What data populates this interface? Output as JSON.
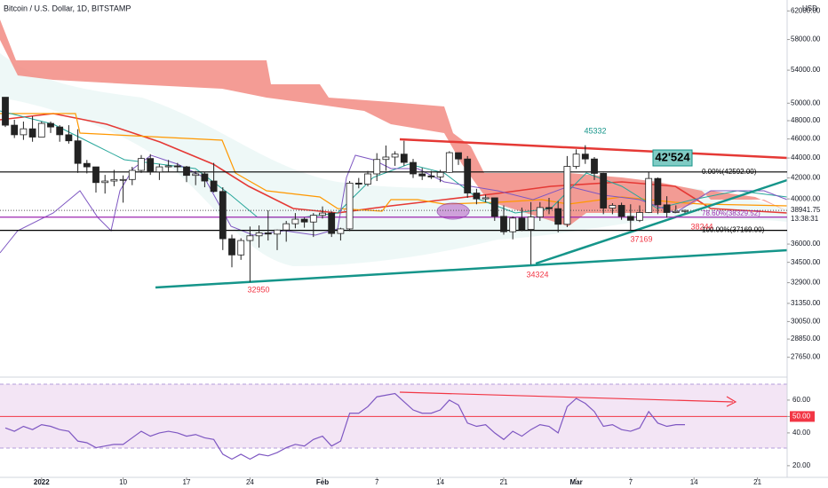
{
  "chart_data": [
    {
      "type": "candlestick",
      "title": "Bitcoin / U.S. Dollar, 1D, BITSTAMP",
      "currency": "USD",
      "open": [
        50700,
        47500,
        46450,
        47100,
        46200,
        47700,
        47300,
        46450,
        45800,
        43450,
        43100,
        41550,
        41700,
        41850,
        41850,
        42750,
        43950,
        42600,
        43100,
        43200,
        43100,
        42250,
        42400,
        41700,
        40700,
        36450,
        35100,
        36300,
        36700,
        36950,
        36850,
        37200,
        37750,
        38150,
        37900,
        38500,
        38700,
        36900,
        37300,
        41500,
        41400,
        42400,
        43850,
        44100,
        44400,
        43550,
        42400,
        42200,
        42100,
        42550,
        44550,
        43900,
        40550,
        40000,
        40100,
        38400,
        37050,
        38250,
        37250,
        38350,
        39200,
        39100,
        37700,
        43150,
        44400,
        43900,
        42450,
        39150,
        39400,
        38400,
        38050,
        38750,
        41950,
        39450,
        38750,
        38850
      ],
      "high": [
        50700,
        48100,
        47900,
        48500,
        47900,
        47900,
        47500,
        47500,
        47050,
        43800,
        43100,
        42300,
        42800,
        42250,
        43100,
        44300,
        44400,
        43400,
        43800,
        43500,
        43200,
        42700,
        42600,
        43500,
        41100,
        36800,
        36500,
        37500,
        37600,
        38950,
        37250,
        38000,
        38700,
        38300,
        38700,
        39300,
        38850,
        37400,
        41700,
        42000,
        42700,
        44500,
        45300,
        44700,
        45800,
        43900,
        43000,
        42700,
        42800,
        44700,
        44550,
        44200,
        40950,
        40400,
        40100,
        39400,
        38400,
        39200,
        39700,
        39700,
        40100,
        39800,
        44200,
        44900,
        45332,
        44100,
        42500,
        39600,
        39650,
        39500,
        39400,
        42600,
        42050,
        40250,
        39400,
        39000
      ],
      "low": [
        47300,
        46100,
        45900,
        45700,
        46200,
        46650,
        45700,
        45500,
        42500,
        42450,
        40600,
        40500,
        41200,
        39650,
        41300,
        42500,
        42300,
        41800,
        42600,
        42600,
        41600,
        41300,
        41100,
        40600,
        35500,
        34100,
        34700,
        32950,
        35700,
        36300,
        35500,
        36200,
        37350,
        37400,
        36600,
        38200,
        36600,
        36300,
        37100,
        41000,
        41200,
        41700,
        42700,
        43200,
        43200,
        42000,
        41800,
        41900,
        41600,
        42500,
        43300,
        40100,
        39500,
        39700,
        38000,
        36800,
        36400,
        37100,
        34324,
        38000,
        38600,
        37000,
        37450,
        42900,
        43400,
        41800,
        38600,
        38600,
        38100,
        37169,
        37900,
        38700,
        38600,
        38300,
        38700,
        38700
      ],
      "close": [
        47500,
        46450,
        47100,
        46200,
        47700,
        47300,
        46450,
        45800,
        43450,
        43100,
        41550,
        41700,
        41850,
        41850,
        42750,
        43950,
        42600,
        43100,
        43200,
        43100,
        42250,
        42400,
        41700,
        40700,
        36450,
        35100,
        36300,
        36700,
        36950,
        36850,
        37200,
        37750,
        38150,
        37900,
        38500,
        38700,
        36900,
        37300,
        41500,
        41400,
        42400,
        43850,
        44100,
        44400,
        43550,
        42400,
        42200,
        42100,
        42550,
        44550,
        43900,
        40550,
        40000,
        40100,
        38400,
        37050,
        38250,
        37250,
        38350,
        39200,
        39100,
        37700,
        43150,
        44400,
        43900,
        42450,
        39150,
        39400,
        38400,
        38050,
        38750,
        41950,
        39450,
        38750,
        38850,
        38941.75
      ],
      "up_color": "#ffffff",
      "down_color": "#222222",
      "log_scale": true,
      "grid": false,
      "ylim": [
        26400,
        63600
      ],
      "yticks": [
        {
          "value": 62000,
          "label": "62000.00"
        },
        {
          "value": 58000,
          "label": "58000.00"
        },
        {
          "value": 54000,
          "label": "54000.00"
        },
        {
          "value": 50000,
          "label": "50000.00"
        },
        {
          "value": 48000,
          "label": "48000.00"
        },
        {
          "value": 46000,
          "label": "46000.00"
        },
        {
          "value": 44000,
          "label": "44000.00"
        },
        {
          "value": 42000,
          "label": "42000.00"
        },
        {
          "value": 40000,
          "label": "40000.00"
        },
        {
          "value": 36000,
          "label": "36000.00"
        },
        {
          "value": 34500,
          "label": "34500.00"
        },
        {
          "value": 32900,
          "label": "32900.00"
        },
        {
          "value": 31350,
          "label": "31350.00"
        },
        {
          "value": 30050,
          "label": "30050.00"
        },
        {
          "value": 28850,
          "label": "28850.00"
        },
        {
          "value": 27650,
          "label": "27650.00"
        }
      ],
      "xticks": [
        {
          "value": 4,
          "label": "2022"
        },
        {
          "value": 13,
          "label": "10"
        },
        {
          "value": 20,
          "label": "17"
        },
        {
          "value": 27,
          "label": "24"
        },
        {
          "value": 35,
          "label": "Feb"
        },
        {
          "value": 41,
          "label": "7"
        },
        {
          "value": 48,
          "label": "14"
        },
        {
          "value": 55,
          "label": "21"
        },
        {
          "value": 63,
          "label": "Mar"
        },
        {
          "value": 69,
          "label": "7"
        },
        {
          "value": 76,
          "label": "14"
        },
        {
          "value": 83,
          "label": "21"
        }
      ],
      "current_price": 38941.75,
      "countdown": "13:38:31",
      "levels": [
        {
          "label": "0.00%(42592.00)",
          "value": 42592,
          "color": "#000000"
        },
        {
          "label": "78.60%(38329.52)",
          "value": 38329.52,
          "color": "#9c27b0"
        },
        {
          "label": "100.00%(37169.00)",
          "value": 37169,
          "color": "#000000"
        }
      ],
      "annotations": [
        "45332",
        "42'524",
        "38244",
        "37169",
        "32950",
        "34324"
      ]
    },
    {
      "type": "line",
      "color": "#7e57c2",
      "values": [
        43,
        41,
        44,
        42,
        45,
        44,
        42,
        41,
        35,
        34,
        31,
        32,
        33,
        33,
        37,
        41,
        38,
        40,
        41,
        40,
        38,
        39,
        37,
        36,
        27,
        24,
        27,
        24,
        27,
        26,
        28,
        31,
        33,
        32,
        36,
        38,
        32,
        35,
        52,
        52,
        56,
        62,
        63,
        64,
        59,
        54,
        52,
        52,
        54,
        60,
        57,
        46,
        44,
        45,
        40,
        36,
        41,
        38,
        42,
        45,
        44,
        40,
        56,
        61,
        58,
        53,
        44,
        45,
        42,
        41,
        43,
        53,
        46,
        44,
        45,
        45
      ],
      "ylim": [
        12.9,
        72.4
      ],
      "yticks": [
        {
          "value": 60,
          "label": "60.00"
        },
        {
          "value": 50,
          "label": "50.00"
        },
        {
          "value": 40,
          "label": "40.00"
        },
        {
          "value": 20,
          "label": "20.00"
        }
      ],
      "midline": 50,
      "midline_color": "#f23645"
    }
  ]
}
